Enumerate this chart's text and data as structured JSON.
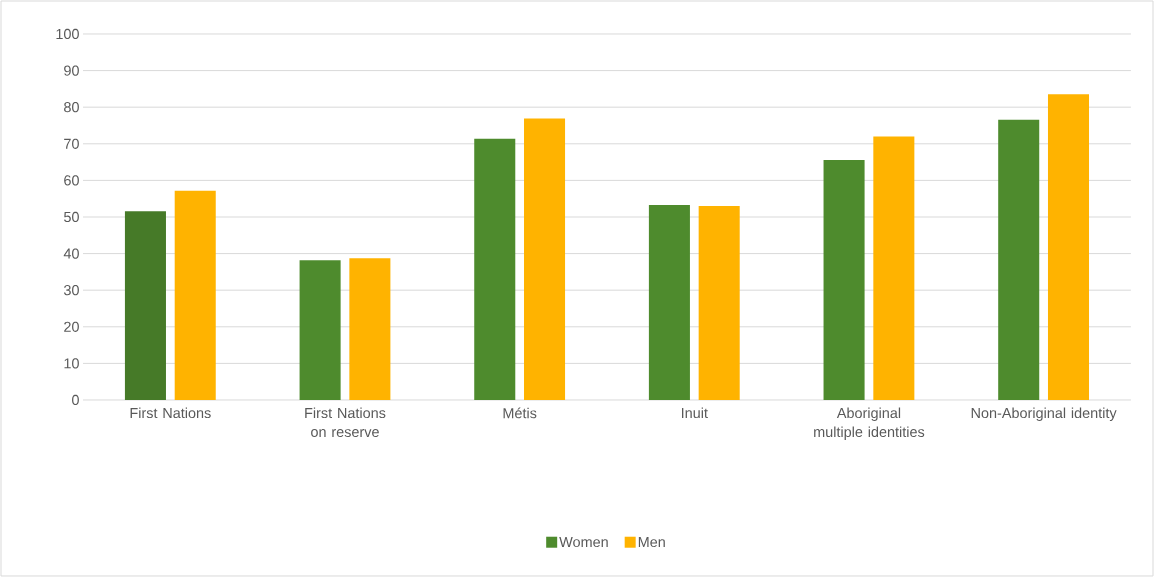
{
  "chart_data": {
    "type": "bar",
    "categories": [
      "First Nations",
      "First Nations on reserve",
      "Métis",
      "Inuit",
      "Aboriginal multiple identities",
      "Non-Aboriginal identity"
    ],
    "series": [
      {
        "name": "Women",
        "color": "#4e8b2d",
        "colors": [
          "#467a28",
          "#4e8b2d",
          "#4e8b2d",
          "#4e8b2d",
          "#4e8b2d",
          "#4e8b2d"
        ],
        "values": [
          51.6,
          38.2,
          71.4,
          53.3,
          65.6,
          76.6
        ]
      },
      {
        "name": "Men",
        "color": "#ffb300",
        "values": [
          57.2,
          38.7,
          76.9,
          53.0,
          72.0,
          83.5
        ]
      }
    ],
    "ylim": [
      0,
      100
    ],
    "yticks": [
      0,
      10,
      20,
      30,
      40,
      50,
      60,
      70,
      80,
      90,
      100
    ],
    "grid": "y",
    "legend": "bottom"
  }
}
